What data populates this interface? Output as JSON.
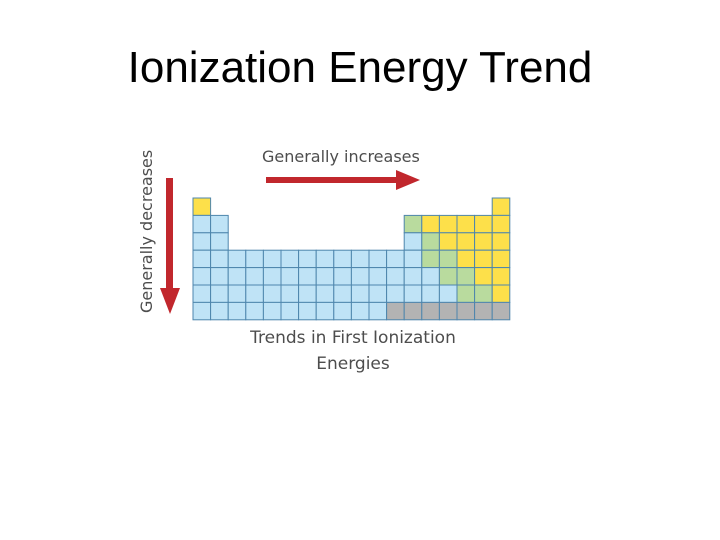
{
  "slide": {
    "title": "Ionization Energy Trend"
  },
  "diagram": {
    "top_arrow_label": "Generally increases",
    "side_arrow_label": "Generally decreases",
    "caption_line1": "Trends in First Ionization",
    "caption_line2": "Energies"
  },
  "colors": {
    "metal": "#bfe3f6",
    "metalloid": "#b9db9e",
    "nonmetal": "#fde04a",
    "period7_unknown": "#b3b3b3",
    "grid_line": "#4e86ad",
    "arrow": "#c1272d",
    "text": "#4d4d4d"
  },
  "table_grid": [
    "Y................Y",
    "BB..........GYYYYY",
    "BB..........BGYYYY",
    "BBBBBBBBBBBBBGGYYY",
    "BBBBBBBBBBBBBBGGYY",
    "BBBBBBBBBBBBBBBGGY",
    "BBBBBBBBBBBGGGGGGG"
  ],
  "grid_legend": {
    "B": "metal",
    "G": "metalloid",
    "Y": "nonmetal",
    ".": "empty"
  }
}
